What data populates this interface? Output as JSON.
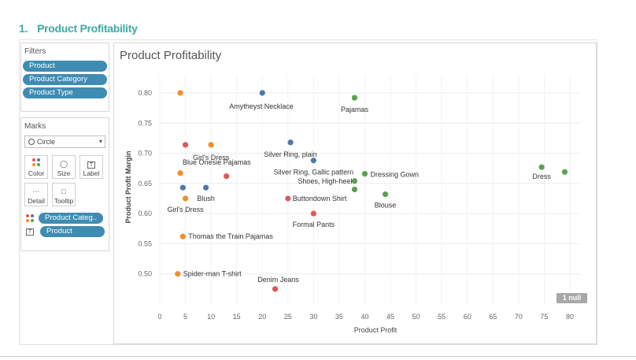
{
  "heading": {
    "number": "1.",
    "title": "Product Profitability"
  },
  "filters": {
    "title": "Filters",
    "pills": [
      "Product",
      "Product Category",
      "Product Type"
    ]
  },
  "marks": {
    "title": "Marks",
    "mark_type": "Circle",
    "buttons": {
      "color": "Color",
      "size": "Size",
      "label": "Label",
      "detail": "Detail",
      "tooltip": "Tooltip"
    },
    "shelf": {
      "color_field": "Product Categ..",
      "label_field": "Product"
    }
  },
  "null_badge": "1 null",
  "colors": {
    "blue": "#4e79a7",
    "orange": "#f28e2b",
    "red": "#e15759",
    "green": "#59a14f",
    "pill": "#3f8cb2",
    "heading": "#3fa9a1"
  },
  "chart_data": {
    "type": "scatter",
    "title": "Product Profitability",
    "xlabel": "Product Profit",
    "ylabel": "Product Profit Margin",
    "xlim": [
      0,
      82
    ],
    "ylim": [
      0.45,
      0.83
    ],
    "xticks": [
      "0",
      "5",
      "10",
      "15",
      "20",
      "25",
      "30",
      "35",
      "40",
      "45",
      "50",
      "55",
      "60",
      "65",
      "70",
      "75",
      "80"
    ],
    "yticks": [
      "0.50",
      "0.55",
      "0.60",
      "0.65",
      "0.70",
      "0.75",
      "0.80"
    ],
    "grid": true,
    "points": [
      {
        "x": 4.0,
        "y": 0.8,
        "c": "orange",
        "label": ""
      },
      {
        "x": 20.0,
        "y": 0.8,
        "c": "blue",
        "label": "Amytheyst Necklace"
      },
      {
        "x": 38.0,
        "y": 0.792,
        "c": "green",
        "label": "Pajamas"
      },
      {
        "x": 25.5,
        "y": 0.718,
        "c": "blue",
        "label": "Silver Ring, plain"
      },
      {
        "x": 5.0,
        "y": 0.714,
        "c": "red",
        "label": ""
      },
      {
        "x": 10.0,
        "y": 0.714,
        "c": "orange",
        "label": "Girl's Dress"
      },
      {
        "x": 30.0,
        "y": 0.688,
        "c": "blue",
        "label": "Silver Ring, Gallic pattern"
      },
      {
        "x": 74.5,
        "y": 0.677,
        "c": "green",
        "label": "Dress"
      },
      {
        "x": 79.0,
        "y": 0.669,
        "c": "green",
        "label": ""
      },
      {
        "x": 4.0,
        "y": 0.667,
        "c": "orange",
        "label": "Blue Onesie Pajamas"
      },
      {
        "x": 13.0,
        "y": 0.662,
        "c": "red",
        "label": ""
      },
      {
        "x": 40.0,
        "y": 0.666,
        "c": "green",
        "label": "Dressing Gown"
      },
      {
        "x": 38.0,
        "y": 0.654,
        "c": "green",
        "label": "Shoes, High-heel"
      },
      {
        "x": 4.5,
        "y": 0.643,
        "c": "blue",
        "label": ""
      },
      {
        "x": 9.0,
        "y": 0.643,
        "c": "blue",
        "label": "Blush"
      },
      {
        "x": 38.0,
        "y": 0.64,
        "c": "green",
        "label": ""
      },
      {
        "x": 44.0,
        "y": 0.632,
        "c": "green",
        "label": "Blouse"
      },
      {
        "x": 5.0,
        "y": 0.625,
        "c": "orange",
        "label": "Girl's Dress"
      },
      {
        "x": 25.0,
        "y": 0.625,
        "c": "red",
        "label": "Buttondown Shirt"
      },
      {
        "x": 30.0,
        "y": 0.6,
        "c": "red",
        "label": "Formal Pants"
      },
      {
        "x": 4.5,
        "y": 0.562,
        "c": "orange",
        "label": "Thomas the Train Pajamas"
      },
      {
        "x": 3.5,
        "y": 0.5,
        "c": "orange",
        "label": "Spider-man T-shirt"
      },
      {
        "x": 22.5,
        "y": 0.475,
        "c": "red",
        "label": "Denim Jeans"
      }
    ]
  }
}
